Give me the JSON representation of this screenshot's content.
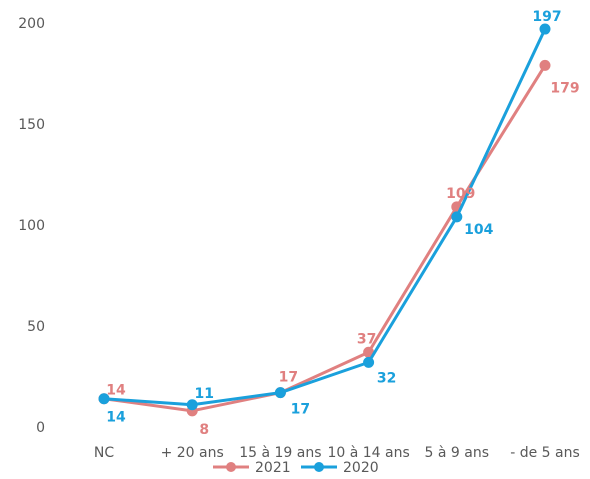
{
  "chart_data": {
    "type": "line",
    "categories": [
      "NC",
      "+ 20 ans",
      "15 à 19 ans",
      "10 à 14 ans",
      "5 à 9 ans",
      "- de 5 ans"
    ],
    "series": [
      {
        "name": "2021",
        "values": [
          14,
          8,
          17,
          37,
          109,
          179
        ],
        "color": "#E08080",
        "labels": [
          "14",
          "8",
          "17",
          "37",
          "109",
          "179"
        ]
      },
      {
        "name": "2020",
        "values": [
          14,
          11,
          17,
          32,
          104,
          197
        ],
        "color": "#1AA0DC",
        "labels": [
          "14",
          "11",
          "17",
          "32",
          "104",
          "197"
        ]
      }
    ],
    "yticks": [
      "0",
      "50",
      "100",
      "150",
      "200"
    ],
    "ylim": [
      0,
      200
    ],
    "grid": false,
    "legend": "bottom",
    "title": "",
    "xlabel": "",
    "ylabel": ""
  }
}
